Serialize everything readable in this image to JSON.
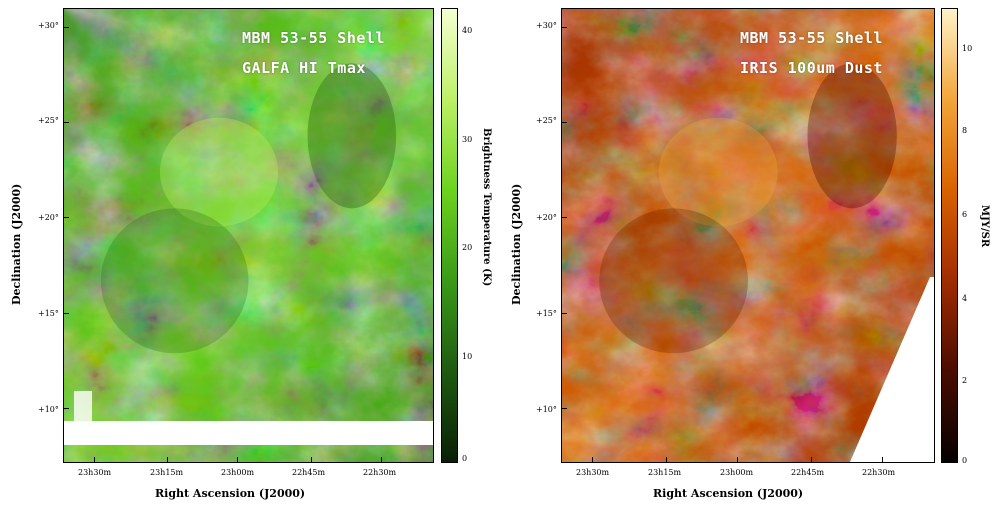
{
  "panels": {
    "hi": {
      "title_line1": "MBM 53-55 Shell",
      "title_line2": "GALFA HI Tmax",
      "colorbar_label": "Brightness Temperature (K)",
      "colorbar_ticks": [
        "40",
        "30",
        "20",
        "10",
        "0"
      ],
      "colormap": [
        "#0a1f06",
        "#1f5a10",
        "#3a9a18",
        "#6dd21e",
        "#bdf066",
        "#f4ffd2"
      ]
    },
    "dust": {
      "title_line1": "MBM 53-55 Shell",
      "title_line2": "IRIS 100um Dust",
      "colorbar_label": "MJY/SR",
      "colorbar_ticks": [
        "10",
        "8",
        "6",
        "4",
        "2",
        "0"
      ],
      "colormap": [
        "#050100",
        "#4a0c00",
        "#a02c00",
        "#d96200",
        "#f2a63a",
        "#fff2c8"
      ]
    }
  },
  "axes": {
    "ylabel": "Declination (J2000)",
    "xlabel": "Right Ascension (J2000)",
    "dec_ticks": [
      "+30°",
      "+25°",
      "+20°",
      "+15°",
      "+10°"
    ],
    "ra_ticks": [
      "23h30m",
      "23h15m",
      "23h00m",
      "22h45m",
      "22h30m"
    ]
  }
}
